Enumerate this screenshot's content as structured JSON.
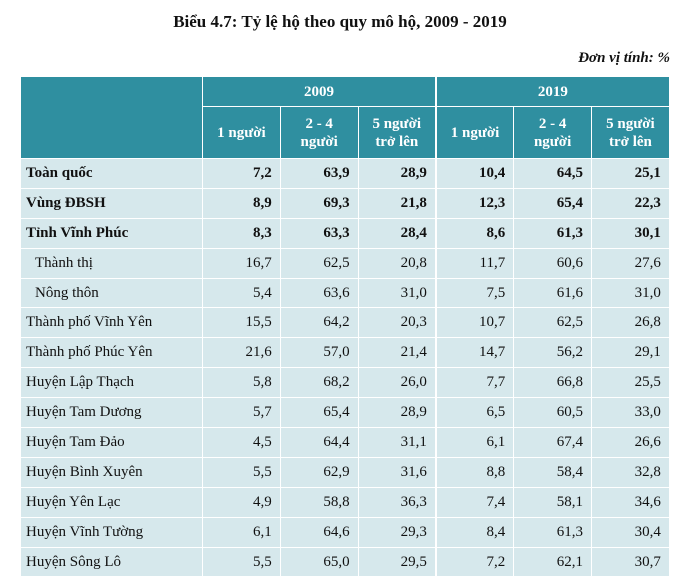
{
  "title": "Biểu 4.7: Tỷ lệ hộ theo quy mô hộ, 2009 - 2019",
  "unit": "Đơn vị tính: %",
  "years": [
    "2009",
    "2019"
  ],
  "subheaders": [
    [
      "1 người"
    ],
    [
      "2 - 4",
      "người"
    ],
    [
      "5 người",
      "trở lên"
    ],
    [
      "1 người"
    ],
    [
      "2 - 4",
      "người"
    ],
    [
      "5 người",
      "trở lên"
    ]
  ],
  "rows": [
    {
      "name": "Toàn quốc",
      "values": [
        "7,2",
        "63,9",
        "28,9",
        "10,4",
        "64,5",
        "25,1"
      ],
      "style": "bold"
    },
    {
      "name": "Vùng ĐBSH",
      "values": [
        "8,9",
        "69,3",
        "21,8",
        "12,3",
        "65,4",
        "22,3"
      ],
      "style": "bold"
    },
    {
      "name": "Tỉnh Vĩnh Phúc",
      "values": [
        "8,3",
        "63,3",
        "28,4",
        "8,6",
        "61,3",
        "30,1"
      ],
      "style": "bold"
    },
    {
      "name": "Thành thị",
      "values": [
        "16,7",
        "62,5",
        "20,8",
        "11,7",
        "60,6",
        "27,6"
      ],
      "style": "indent"
    },
    {
      "name": "Nông thôn",
      "values": [
        "5,4",
        "63,6",
        "31,0",
        "7,5",
        "61,6",
        "31,0"
      ],
      "style": "indent"
    },
    {
      "name": "Thành phố Vĩnh Yên",
      "values": [
        "15,5",
        "64,2",
        "20,3",
        "10,7",
        "62,5",
        "26,8"
      ],
      "style": ""
    },
    {
      "name": "Thành phố Phúc Yên",
      "values": [
        "21,6",
        "57,0",
        "21,4",
        "14,7",
        "56,2",
        "29,1"
      ],
      "style": ""
    },
    {
      "name": "Huyện Lập Thạch",
      "values": [
        "5,8",
        "68,2",
        "26,0",
        "7,7",
        "66,8",
        "25,5"
      ],
      "style": ""
    },
    {
      "name": "Huyện Tam Dương",
      "values": [
        "5,7",
        "65,4",
        "28,9",
        "6,5",
        "60,5",
        "33,0"
      ],
      "style": ""
    },
    {
      "name": "Huyện Tam Đảo",
      "values": [
        "4,5",
        "64,4",
        "31,1",
        "6,1",
        "67,4",
        "26,6"
      ],
      "style": ""
    },
    {
      "name": "Huyện Bình Xuyên",
      "values": [
        "5,5",
        "62,9",
        "31,6",
        "8,8",
        "58,4",
        "32,8"
      ],
      "style": ""
    },
    {
      "name": "Huyện Yên Lạc",
      "values": [
        "4,9",
        "58,8",
        "36,3",
        "7,4",
        "58,1",
        "34,6"
      ],
      "style": ""
    },
    {
      "name": "Huyện Vĩnh Tường",
      "values": [
        "6,1",
        "64,6",
        "29,3",
        "8,4",
        "61,3",
        "30,4"
      ],
      "style": ""
    },
    {
      "name": "Huyện Sông Lô",
      "values": [
        "5,5",
        "65,0",
        "29,5",
        "7,2",
        "62,1",
        "30,7"
      ],
      "style": ""
    }
  ],
  "colors": {
    "header_bg": "#2f8fa0",
    "header_text": "#ffffff",
    "body_bg": "#d6e8ec"
  }
}
